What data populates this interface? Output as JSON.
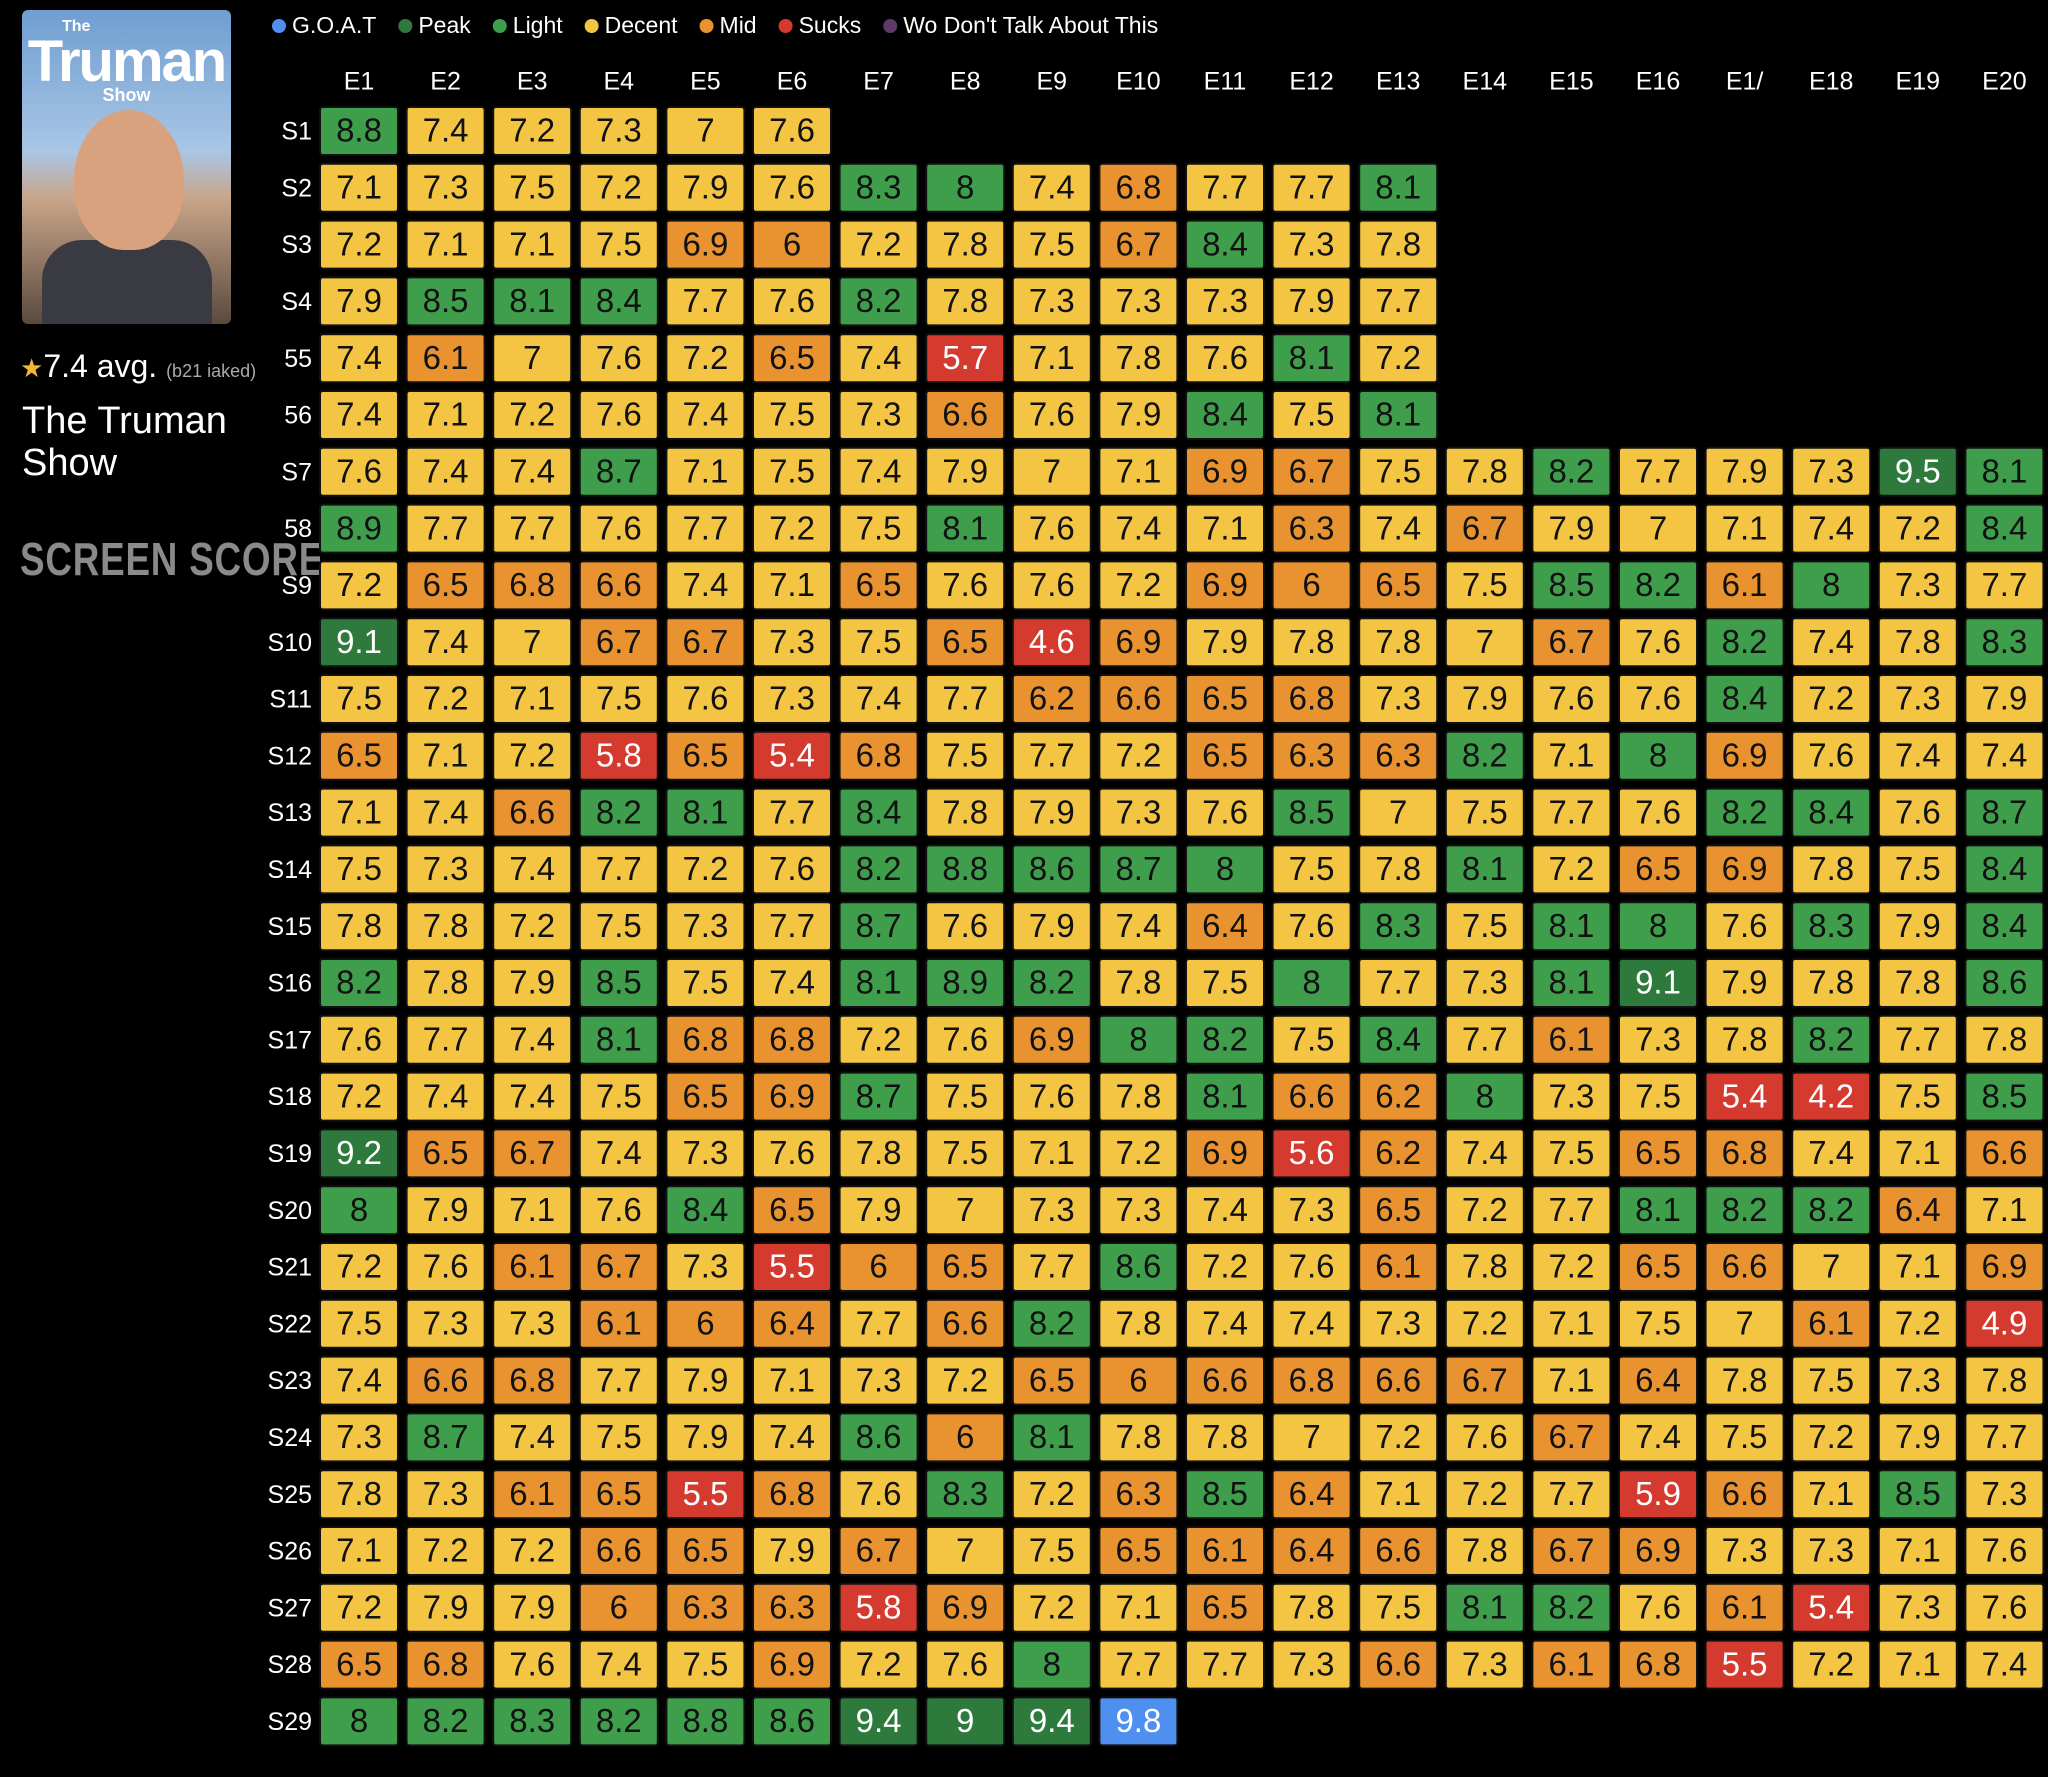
{
  "sidebar": {
    "poster": {
      "top": "The",
      "title": "Truman",
      "bottom": "Show"
    },
    "rating": "7.4 avg.",
    "rating_count": "(b21 iaked)",
    "title": "The Truman Show",
    "brand": "SCREEN SCORE"
  },
  "chart_data": {
    "type": "heatmap",
    "legend": [
      {
        "name": "G.O.A.T",
        "color": "#4f8ff0"
      },
      {
        "name": "Peak",
        "color": "#2d7a3c"
      },
      {
        "name": "Light",
        "color": "#3e9e4c"
      },
      {
        "name": "Decent",
        "color": "#f4c542"
      },
      {
        "name": "Mid",
        "color": "#e8932f"
      },
      {
        "name": "Sucks",
        "color": "#d53a2e"
      },
      {
        "name": "Wo Don't Talk About This",
        "color": "#5c3a6b"
      }
    ],
    "columns": [
      "E1",
      "E2",
      "E3",
      "E4",
      "E5",
      "E6",
      "E7",
      "E8",
      "E9",
      "E10",
      "E11",
      "E12",
      "E13",
      "E14",
      "E15",
      "E16",
      "E1/",
      "E18",
      "E19",
      "E20"
    ],
    "rows": [
      "S1",
      "S2",
      "S3",
      "S4",
      "55",
      "56",
      "S7",
      "58",
      "S9",
      "S10",
      "S11",
      "S12",
      "S13",
      "S14",
      "S15",
      "S16",
      "S17",
      "S18",
      "S19",
      "S20",
      "S21",
      "S22",
      "S23",
      "S24",
      "S25",
      "S26",
      "S27",
      "S28",
      "S29"
    ],
    "values": [
      [
        8.8,
        7.4,
        7.2,
        7.3,
        7.0,
        7.6,
        null,
        null,
        null,
        null,
        null,
        null,
        null,
        null,
        null,
        null,
        null,
        null,
        null,
        null
      ],
      [
        7.1,
        7.3,
        7.5,
        7.2,
        7.9,
        7.6,
        8.3,
        8.0,
        7.4,
        6.8,
        7.7,
        7.7,
        8.1,
        null,
        null,
        null,
        null,
        null,
        null,
        null
      ],
      [
        7.2,
        7.1,
        7.1,
        7.5,
        6.9,
        6.0,
        7.2,
        7.8,
        7.5,
        6.7,
        8.4,
        7.3,
        7.8,
        null,
        null,
        null,
        null,
        null,
        null,
        null
      ],
      [
        7.9,
        8.5,
        8.1,
        8.4,
        7.7,
        7.6,
        8.2,
        7.8,
        7.3,
        7.3,
        7.3,
        7.9,
        7.7,
        null,
        null,
        null,
        null,
        null,
        null,
        null
      ],
      [
        7.4,
        6.1,
        7.0,
        7.6,
        7.2,
        6.5,
        7.4,
        5.7,
        7.1,
        7.8,
        7.6,
        8.1,
        7.2,
        null,
        null,
        null,
        null,
        null,
        null,
        null
      ],
      [
        7.4,
        7.1,
        7.2,
        7.6,
        7.4,
        7.5,
        7.3,
        6.6,
        7.6,
        7.9,
        8.4,
        7.5,
        8.1,
        null,
        null,
        null,
        null,
        null,
        null,
        null
      ],
      [
        7.6,
        7.4,
        7.4,
        8.7,
        7.1,
        7.5,
        7.4,
        7.9,
        7.0,
        7.1,
        6.9,
        6.7,
        7.5,
        7.8,
        8.2,
        7.7,
        7.9,
        7.3,
        9.5,
        8.1
      ],
      [
        8.9,
        7.7,
        7.7,
        7.6,
        7.7,
        7.2,
        7.5,
        8.1,
        7.6,
        7.4,
        7.1,
        6.3,
        7.4,
        6.7,
        7.9,
        7.0,
        7.1,
        7.4,
        7.2,
        8.4
      ],
      [
        7.2,
        6.5,
        6.8,
        6.6,
        7.4,
        7.1,
        6.5,
        7.6,
        7.6,
        7.2,
        6.9,
        6.0,
        6.5,
        7.5,
        8.5,
        8.2,
        6.1,
        8.0,
        7.3,
        7.7
      ],
      [
        9.1,
        7.4,
        7.0,
        6.7,
        6.7,
        7.3,
        7.5,
        6.5,
        4.6,
        6.9,
        7.9,
        7.8,
        7.8,
        7.0,
        6.7,
        7.6,
        8.2,
        7.4,
        7.8,
        8.3
      ],
      [
        7.5,
        7.2,
        7.1,
        7.5,
        7.6,
        7.3,
        7.4,
        7.7,
        6.2,
        6.6,
        6.5,
        6.8,
        7.3,
        7.9,
        7.6,
        7.6,
        8.4,
        7.2,
        7.3,
        7.9
      ],
      [
        6.5,
        7.1,
        7.2,
        5.8,
        6.5,
        5.4,
        6.8,
        7.5,
        7.7,
        7.2,
        6.5,
        6.3,
        6.3,
        8.2,
        7.1,
        8.0,
        6.9,
        7.6,
        7.4,
        7.4
      ],
      [
        7.1,
        7.4,
        6.6,
        8.2,
        8.1,
        7.7,
        8.4,
        7.8,
        7.9,
        7.3,
        7.6,
        8.5,
        7.0,
        7.5,
        7.7,
        7.6,
        8.2,
        8.4,
        7.6,
        8.7
      ],
      [
        7.5,
        7.3,
        7.4,
        7.7,
        7.2,
        7.6,
        8.2,
        8.8,
        8.6,
        8.7,
        8.0,
        7.5,
        7.8,
        8.1,
        7.2,
        6.5,
        6.9,
        7.8,
        7.5,
        8.4
      ],
      [
        7.8,
        7.8,
        7.2,
        7.5,
        7.3,
        7.7,
        8.7,
        7.6,
        7.9,
        7.4,
        6.4,
        7.6,
        8.3,
        7.5,
        8.1,
        8.0,
        7.6,
        8.3,
        7.9,
        8.4
      ],
      [
        8.2,
        7.8,
        7.9,
        8.5,
        7.5,
        7.4,
        8.1,
        8.9,
        8.2,
        7.8,
        7.5,
        8.0,
        7.7,
        7.3,
        8.1,
        9.1,
        7.9,
        7.8,
        7.8,
        8.6
      ],
      [
        7.6,
        7.7,
        7.4,
        8.1,
        6.8,
        6.8,
        7.2,
        7.6,
        6.9,
        8.0,
        8.2,
        7.5,
        8.4,
        7.7,
        6.1,
        7.3,
        7.8,
        8.2,
        7.7,
        7.8
      ],
      [
        7.2,
        7.4,
        7.4,
        7.5,
        6.5,
        6.9,
        8.7,
        7.5,
        7.6,
        7.8,
        8.1,
        6.6,
        6.2,
        8.0,
        7.3,
        7.5,
        5.4,
        4.2,
        7.5,
        8.5
      ],
      [
        9.2,
        6.5,
        6.7,
        7.4,
        7.3,
        7.6,
        7.8,
        7.5,
        7.1,
        7.2,
        6.9,
        5.6,
        6.2,
        7.4,
        7.5,
        6.5,
        6.8,
        7.4,
        7.1,
        6.6
      ],
      [
        8.0,
        7.9,
        7.1,
        7.6,
        8.4,
        6.5,
        7.9,
        7.0,
        7.3,
        7.3,
        7.4,
        7.3,
        6.5,
        7.2,
        7.7,
        8.1,
        8.2,
        8.2,
        6.4,
        7.1
      ],
      [
        7.2,
        7.6,
        6.1,
        6.7,
        7.3,
        5.5,
        6.0,
        6.5,
        7.7,
        8.6,
        7.2,
        7.6,
        6.1,
        7.8,
        7.2,
        6.5,
        6.6,
        7.0,
        7.1,
        6.9
      ],
      [
        7.5,
        7.3,
        7.3,
        6.1,
        6.0,
        6.4,
        7.7,
        6.6,
        8.2,
        7.8,
        7.4,
        7.4,
        7.3,
        7.2,
        7.1,
        7.5,
        7.0,
        6.1,
        7.2,
        4.9
      ],
      [
        7.4,
        6.6,
        6.8,
        7.7,
        7.9,
        7.1,
        7.3,
        7.2,
        6.5,
        6.0,
        6.6,
        6.8,
        6.6,
        6.7,
        7.1,
        6.4,
        7.8,
        7.5,
        7.3,
        7.8
      ],
      [
        7.3,
        8.7,
        7.4,
        7.5,
        7.9,
        7.4,
        8.6,
        6.0,
        8.1,
        7.8,
        7.8,
        7.0,
        7.2,
        7.6,
        6.7,
        7.4,
        7.5,
        7.2,
        7.9,
        7.7
      ],
      [
        7.8,
        7.3,
        6.1,
        6.5,
        5.5,
        6.8,
        7.6,
        8.3,
        7.2,
        6.3,
        8.5,
        6.4,
        7.1,
        7.2,
        7.7,
        5.9,
        6.6,
        7.1,
        8.5,
        7.3
      ],
      [
        7.1,
        7.2,
        7.2,
        6.6,
        6.5,
        7.9,
        6.7,
        7.0,
        7.5,
        6.5,
        6.1,
        6.4,
        6.6,
        7.8,
        6.7,
        6.9,
        7.3,
        7.3,
        7.1,
        7.6
      ],
      [
        7.2,
        7.9,
        7.9,
        6.0,
        6.3,
        6.3,
        5.8,
        6.9,
        7.2,
        7.1,
        6.5,
        7.8,
        7.5,
        8.1,
        8.2,
        7.6,
        6.1,
        5.4,
        7.3,
        7.6
      ],
      [
        6.5,
        6.8,
        7.6,
        7.4,
        7.5,
        6.9,
        7.2,
        7.6,
        8.0,
        7.7,
        7.7,
        7.3,
        6.6,
        7.3,
        6.1,
        6.8,
        5.5,
        7.2,
        7.1,
        7.4
      ],
      [
        8.0,
        8.2,
        8.3,
        8.2,
        8.8,
        8.6,
        9.4,
        9.0,
        9.4,
        9.8,
        null,
        null,
        null,
        null,
        null,
        null,
        null,
        null,
        null,
        null
      ]
    ]
  }
}
